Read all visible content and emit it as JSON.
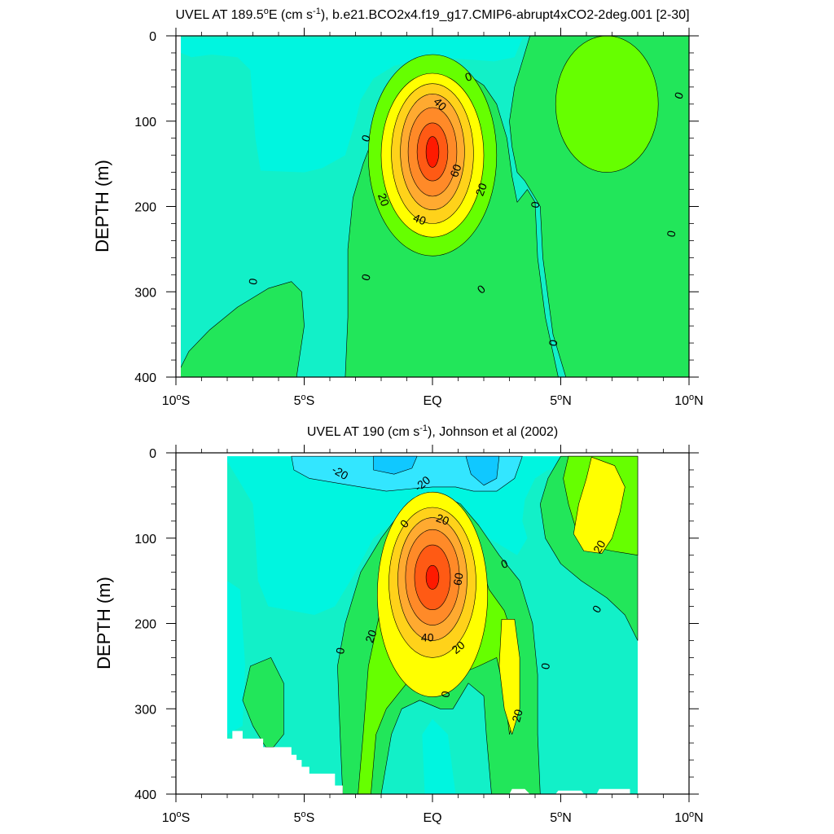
{
  "colors": {
    "neg30": "#10c8ff",
    "neg20": "#33e6ff",
    "neg10": "#00f5e0",
    "zero": "#12f0c8",
    "pos10": "#22e65a",
    "pos20": "#66ff00",
    "pos30": "#ffff00",
    "pos40": "#ffd21a",
    "pos50": "#ffaa30",
    "pos60": "#ff8a28",
    "pos70": "#ff5a14",
    "pos80": "#ff1a00"
  },
  "chart_data": [
    {
      "type": "contour",
      "title_pre": "UVEL AT 189.5",
      "title_deg": "o",
      "title_mid": "E (cm s",
      "title_sup": "-1",
      "title_post": "), b.e21.BCO2x4.f19_g17.CMIP6-abrupt4xCO2-2deg.001 [2-30]",
      "ylabel": "DEPTH (m)",
      "xlim": [
        -10,
        10
      ],
      "ylim": [
        0,
        400
      ],
      "y_reversed": true,
      "xticks": [
        {
          "v": -10,
          "t": "10",
          "deg": "o",
          "h": "S"
        },
        {
          "v": -5,
          "t": "5",
          "deg": "o",
          "h": "S"
        },
        {
          "v": 0,
          "t": "EQ",
          "deg": "",
          "h": ""
        },
        {
          "v": 5,
          "t": "5",
          "deg": "o",
          "h": "N"
        },
        {
          "v": 10,
          "t": "10",
          "deg": "o",
          "h": "N"
        }
      ],
      "yticks": [
        {
          "v": 0,
          "t": "0"
        },
        {
          "v": 100,
          "t": "100"
        },
        {
          "v": 200,
          "t": "200"
        },
        {
          "v": 300,
          "t": "300"
        },
        {
          "v": 400,
          "t": "400"
        }
      ],
      "jet_core": {
        "lat": 0.0,
        "depth": 140,
        "max": 80
      },
      "contour_labels": [
        {
          "t": "0",
          "lat": 1.4,
          "d": 48,
          "rot": -20
        },
        {
          "t": "40",
          "lat": 0.3,
          "d": 80,
          "rot": 45
        },
        {
          "t": "0",
          "lat": -2.6,
          "d": 120,
          "rot": -70
        },
        {
          "t": "60",
          "lat": 0.9,
          "d": 158,
          "rot": -70
        },
        {
          "t": "20",
          "lat": -1.9,
          "d": 192,
          "rot": 70
        },
        {
          "t": "20",
          "lat": 1.9,
          "d": 180,
          "rot": -70
        },
        {
          "t": "40",
          "lat": -0.5,
          "d": 215,
          "rot": 20
        },
        {
          "t": "0",
          "lat": 4.0,
          "d": 198,
          "rot": -80
        },
        {
          "t": "0",
          "lat": 9.6,
          "d": 70,
          "rot": -70
        },
        {
          "t": "0",
          "lat": 9.3,
          "d": 232,
          "rot": -80
        },
        {
          "t": "0",
          "lat": -7.0,
          "d": 288,
          "rot": -80
        },
        {
          "t": "0",
          "lat": -2.6,
          "d": 283,
          "rot": -75
        },
        {
          "t": "0",
          "lat": 1.9,
          "d": 297,
          "rot": -40
        },
        {
          "t": "0",
          "lat": 4.7,
          "d": 360,
          "rot": -80
        }
      ]
    },
    {
      "type": "contour",
      "title_pre": "UVEL AT 190 (cm s",
      "title_deg": "",
      "title_mid": "",
      "title_sup": "-1",
      "title_post": "), Johnson et al (2002)",
      "ylabel": "DEPTH (m)",
      "xlim": [
        -10,
        10
      ],
      "ylim": [
        0,
        400
      ],
      "y_reversed": true,
      "data_lat_range": [
        -8,
        8
      ],
      "xticks": [
        {
          "v": -10,
          "t": "10",
          "deg": "o",
          "h": "S"
        },
        {
          "v": -5,
          "t": "5",
          "deg": "o",
          "h": "S"
        },
        {
          "v": 0,
          "t": "EQ",
          "deg": "",
          "h": ""
        },
        {
          "v": 5,
          "t": "5",
          "deg": "o",
          "h": "N"
        },
        {
          "v": 10,
          "t": "10",
          "deg": "o",
          "h": "N"
        }
      ],
      "yticks": [
        {
          "v": 0,
          "t": "0"
        },
        {
          "v": 100,
          "t": "100"
        },
        {
          "v": 200,
          "t": "200"
        },
        {
          "v": 300,
          "t": "300"
        },
        {
          "v": 400,
          "t": "400"
        }
      ],
      "jet_core": {
        "lat": 0.0,
        "depth": 148,
        "max": 90
      },
      "contour_labels": [
        {
          "t": "-20",
          "lat": -3.6,
          "d": 23,
          "rot": 30
        },
        {
          "t": "-20",
          "lat": -0.4,
          "d": 36,
          "rot": -40
        },
        {
          "t": "20",
          "lat": 0.4,
          "d": 78,
          "rot": 20
        },
        {
          "t": "0",
          "lat": -1.1,
          "d": 83,
          "rot": -50
        },
        {
          "t": "0",
          "lat": 2.8,
          "d": 130,
          "rot": -20
        },
        {
          "t": "20",
          "lat": 6.5,
          "d": 110,
          "rot": -60
        },
        {
          "t": "60",
          "lat": 1.0,
          "d": 148,
          "rot": -80
        },
        {
          "t": "0",
          "lat": 6.4,
          "d": 183,
          "rot": -60
        },
        {
          "t": "20",
          "lat": -2.4,
          "d": 215,
          "rot": -70
        },
        {
          "t": "40",
          "lat": -0.2,
          "d": 216,
          "rot": 0
        },
        {
          "t": "20",
          "lat": 1.0,
          "d": 228,
          "rot": -40
        },
        {
          "t": "0",
          "lat": -3.6,
          "d": 232,
          "rot": -80
        },
        {
          "t": "0",
          "lat": 4.4,
          "d": 250,
          "rot": -80
        },
        {
          "t": "0",
          "lat": 0.5,
          "d": 283,
          "rot": -80
        },
        {
          "t": "20",
          "lat": 3.3,
          "d": 308,
          "rot": -75
        }
      ]
    }
  ]
}
